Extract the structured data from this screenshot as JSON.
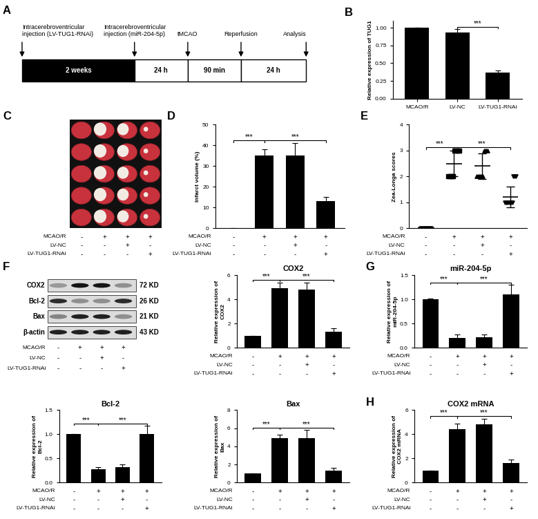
{
  "timeline": {
    "panel": "A",
    "events": [
      "Intracerebroventricular\ninjection (LV-TUG1-RNAi)",
      "Intracerebroventricular\ninjection (miR-204-5p)",
      "tMCAO",
      "Reperfusion",
      "Analysis"
    ],
    "segments": [
      "2 weeks",
      "24 h",
      "90 min",
      "24 h"
    ]
  },
  "image": {
    "panel": "C",
    "conditions": [
      {
        "name": "MCAO/R",
        "marks": [
          "-",
          "+",
          "+",
          "+"
        ]
      },
      {
        "name": "LV-NC",
        "marks": [
          "-",
          "-",
          "+",
          "-"
        ]
      },
      {
        "name": "LV-TUG1-RNAi",
        "marks": [
          "-",
          "-",
          "-",
          "+"
        ]
      }
    ]
  },
  "blot": {
    "panel": "F",
    "bands": [
      {
        "name": "COX2",
        "size": "72 KD"
      },
      {
        "name": "Bcl-2",
        "size": "26 KD"
      },
      {
        "name": "Bax",
        "size": "21 KD"
      },
      {
        "name": "β-actin",
        "size": "43 KD"
      }
    ],
    "conditions": [
      {
        "name": "MCAO/R",
        "marks": [
          "-",
          "+",
          "+",
          "+"
        ]
      },
      {
        "name": "LV-NC",
        "marks": [
          "-",
          "-",
          "+",
          "-"
        ]
      },
      {
        "name": "LV-TUG1-RNAi",
        "marks": [
          "-",
          "-",
          "-",
          "+"
        ]
      }
    ]
  },
  "chart_data": [
    {
      "panel": "B",
      "type": "bar",
      "ylabel": "Relative expression of TUG1",
      "categories": [
        "MCAO/R",
        "LV-NC",
        "LV-TUG1-RNAi"
      ],
      "values": [
        1.0,
        0.93,
        0.37
      ],
      "errors": [
        0,
        0.05,
        0.03
      ],
      "color": "#000000",
      "ylim": [
        0,
        1.1
      ],
      "yticks": [
        {
          "value": 0,
          "label": "0.00"
        },
        {
          "value": 0.25,
          "label": "0.25"
        },
        {
          "value": 0.5,
          "label": "0.50"
        },
        {
          "value": 0.75,
          "label": "0.75"
        },
        {
          "value": 1.0,
          "label": "1.00"
        }
      ],
      "significance": [
        {
          "pair": [
            1,
            2
          ],
          "label": "***"
        }
      ]
    },
    {
      "panel": "D",
      "type": "bar",
      "ylabel": "Infarct volume (%)",
      "tick_labels": "y",
      "values": [
        0,
        35,
        35,
        13
      ],
      "errors": [
        0,
        3,
        6,
        2
      ],
      "color": "#000000",
      "ylim": [
        0,
        50
      ],
      "yticks": [
        0,
        10,
        20,
        30,
        40,
        50
      ],
      "significance": [
        {
          "pair": [
            0,
            1
          ],
          "label": "***"
        },
        {
          "pair": [
            1,
            3
          ],
          "label": "***"
        }
      ],
      "conditions": [
        {
          "name": "MCAO/R",
          "marks": [
            "-",
            "+",
            "+",
            "+"
          ]
        },
        {
          "name": "LV-NC",
          "marks": [
            "-",
            "-",
            "+",
            "-"
          ]
        },
        {
          "name": "LV-TUG1-RNAi",
          "marks": [
            "-",
            "-",
            "-",
            "+"
          ]
        }
      ]
    },
    {
      "panel": "E",
      "type": "scatter",
      "ylabel": "Zea-Longa scores",
      "tick_labels": "y",
      "values": [
        0,
        2.5,
        2.4,
        1.2
      ],
      "errors": [
        0,
        0.5,
        0.5,
        0.4
      ],
      "color": "#000000",
      "series": [
        {
          "marker": "circle",
          "values": [
            0,
            0,
            0,
            0,
            0,
            0,
            0,
            0,
            0,
            0
          ]
        },
        {
          "marker": "square",
          "values": [
            2,
            2,
            2,
            2,
            2,
            3,
            3,
            3,
            3,
            3
          ]
        },
        {
          "marker": "triangle_up",
          "values": [
            2,
            2,
            2,
            2,
            2,
            2,
            3,
            3,
            3,
            3
          ]
        },
        {
          "marker": "triangle_down",
          "values": [
            1,
            1,
            1,
            1,
            1,
            1,
            1,
            2,
            2,
            2
          ]
        }
      ],
      "ylim": [
        0,
        4
      ],
      "yticks": [
        0,
        1,
        2,
        3,
        4
      ],
      "significance": [
        {
          "pair": [
            0,
            1
          ],
          "label": "***"
        },
        {
          "pair": [
            1,
            3
          ],
          "label": "***"
        }
      ],
      "conditions": [
        {
          "name": "MCAO/R",
          "marks": [
            "-",
            "+",
            "+",
            "+"
          ]
        },
        {
          "name": "LV-NC",
          "marks": [
            "-",
            "-",
            "+",
            "-"
          ]
        },
        {
          "name": "LV-TUG1-RNAi",
          "marks": [
            "-",
            "-",
            "-",
            "+"
          ]
        }
      ]
    },
    {
      "type": "bar",
      "title": "COX2",
      "ylabel": "Relative expression of\nCOX2",
      "tick_labels": "y",
      "values": [
        1,
        4.9,
        4.8,
        1.3
      ],
      "errors": [
        0,
        0.5,
        0.6,
        0.3
      ],
      "color": "#000000",
      "ylim": [
        0,
        6
      ],
      "yticks": [
        0,
        2,
        4,
        6
      ],
      "significance": [
        {
          "pair": [
            0,
            1
          ],
          "label": "***"
        },
        {
          "pair": [
            1,
            3
          ],
          "label": "***"
        }
      ],
      "conditions": [
        {
          "name": "MCAO/R",
          "marks": [
            "-",
            "+",
            "+",
            "+"
          ]
        },
        {
          "name": "LV-NC",
          "marks": [
            "-",
            "-",
            "+",
            "-"
          ]
        },
        {
          "name": "LV-TUG1-RNAi",
          "marks": [
            "-",
            "-",
            "-",
            "+"
          ]
        }
      ]
    },
    {
      "panel": "G",
      "type": "bar",
      "title": "miR-204-5p",
      "ylabel": "Relative expression of\nmiR-204-5p",
      "tick_labels": "y",
      "values": [
        1.0,
        0.2,
        0.22,
        1.1
      ],
      "errors": [
        0.02,
        0.08,
        0.06,
        0.2
      ],
      "color": "#000000",
      "ylim": [
        0,
        1.5
      ],
      "yticks": [
        {
          "value": 0,
          "label": "0.0"
        },
        {
          "value": 0.5,
          "label": "0.5"
        },
        {
          "value": 1.0,
          "label": "1.0"
        },
        {
          "value": 1.5,
          "label": "1.5"
        }
      ],
      "significance": [
        {
          "pair": [
            0,
            1
          ],
          "label": "***"
        },
        {
          "pair": [
            1,
            3
          ],
          "label": "***"
        }
      ],
      "conditions": [
        {
          "name": "MCAO/R",
          "marks": [
            "-",
            "+",
            "+",
            "+"
          ]
        },
        {
          "name": "LV-NC",
          "marks": [
            "-",
            "-",
            "+",
            "-"
          ]
        },
        {
          "name": "LV-TUG1-RNAi",
          "marks": [
            "-",
            "-",
            "-",
            "+"
          ]
        }
      ]
    },
    {
      "type": "bar",
      "title": "Bcl-2",
      "ylabel": "Relative expression of\nBcl-2",
      "tick_labels": "y",
      "values": [
        1.0,
        0.28,
        0.32,
        1.0
      ],
      "errors": [
        0,
        0.04,
        0.06,
        0.17
      ],
      "color": "#000000",
      "ylim": [
        0,
        1.5
      ],
      "yticks": [
        {
          "value": 0,
          "label": "0.0"
        },
        {
          "value": 0.5,
          "label": "0.5"
        },
        {
          "value": 1.0,
          "label": "1.0"
        },
        {
          "value": 1.5,
          "label": "1.5"
        }
      ],
      "significance": [
        {
          "pair": [
            0,
            1
          ],
          "label": "***"
        },
        {
          "pair": [
            1,
            3
          ],
          "label": "***"
        }
      ],
      "conditions": [
        {
          "name": "MCAO/R",
          "marks": [
            "-",
            "+",
            "+",
            "+"
          ]
        },
        {
          "name": "LV-NC",
          "marks": [
            "-",
            "-",
            "+",
            "-"
          ]
        },
        {
          "name": "LV-TUG1-RNAi",
          "marks": [
            "-",
            "-",
            "-",
            "+"
          ]
        }
      ]
    },
    {
      "type": "bar",
      "title": "Bax",
      "ylabel": "Relative expression of\nBax",
      "tick_labels": "y",
      "values": [
        1,
        4.9,
        4.9,
        1.3
      ],
      "errors": [
        0,
        0.4,
        0.9,
        0.3
      ],
      "color": "#000000",
      "ylim": [
        0,
        8
      ],
      "yticks": [
        0,
        2,
        4,
        6,
        8
      ],
      "significance": [
        {
          "pair": [
            0,
            1
          ],
          "label": "***"
        },
        {
          "pair": [
            1,
            3
          ],
          "label": "***"
        }
      ],
      "conditions": [
        {
          "name": "MCAO/R",
          "marks": [
            "-",
            "+",
            "+",
            "+"
          ]
        },
        {
          "name": "LV-NC",
          "marks": [
            "-",
            "-",
            "+",
            "-"
          ]
        },
        {
          "name": "LV-TUG1-RNAi",
          "marks": [
            "-",
            "-",
            "-",
            "+"
          ]
        }
      ]
    },
    {
      "panel": "H",
      "type": "bar",
      "title": "COX2 mRNA",
      "ylabel": "Relative expression of\nCOX2 mRNA",
      "tick_labels": "y",
      "values": [
        1,
        4.4,
        4.8,
        1.6
      ],
      "errors": [
        0,
        0.5,
        0.5,
        0.3
      ],
      "color": "#000000",
      "ylim": [
        0,
        6
      ],
      "yticks": [
        0,
        2,
        4,
        6
      ],
      "significance": [
        {
          "pair": [
            0,
            1
          ],
          "label": "***"
        },
        {
          "pair": [
            1,
            3
          ],
          "label": "***"
        }
      ],
      "conditions": [
        {
          "name": "MCAO/R",
          "marks": [
            "-",
            "+",
            "+",
            "+"
          ]
        },
        {
          "name": "LV-NC",
          "marks": [
            "-",
            "-",
            "+",
            "-"
          ]
        },
        {
          "name": "LV-TUG1-RNAi",
          "marks": [
            "-",
            "-",
            "-",
            "+"
          ]
        }
      ]
    }
  ]
}
